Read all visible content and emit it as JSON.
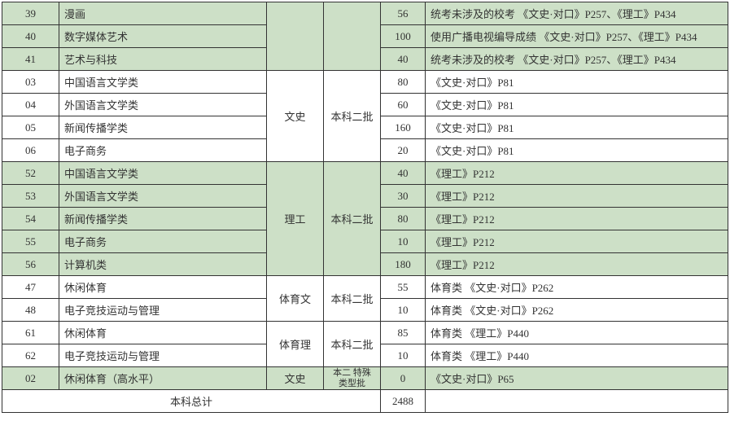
{
  "rows": [
    {
      "code": "39",
      "major": "漫画",
      "cat": "",
      "batch": "",
      "num": "56",
      "note": "统考未涉及的校考 《文史·对口》P257、《理工》P434",
      "green": true,
      "catRowspan": 3,
      "batchRowspan": 3
    },
    {
      "code": "40",
      "major": "数字媒体艺术",
      "num": "100",
      "note": "使用广播电视编导成绩 《文史·对口》P257、《理工》P434",
      "green": true
    },
    {
      "code": "41",
      "major": "艺术与科技",
      "num": "40",
      "note": "统考未涉及的校考 《文史·对口》P257、《理工》P434",
      "green": true
    },
    {
      "code": "03",
      "major": "中国语言文学类",
      "cat": "文史",
      "batch": "本科二批",
      "num": "80",
      "note": "《文史·对口》P81",
      "green": false,
      "catRowspan": 4,
      "batchRowspan": 4
    },
    {
      "code": "04",
      "major": "外国语言文学类",
      "num": "60",
      "note": "《文史·对口》P81",
      "green": false
    },
    {
      "code": "05",
      "major": "新闻传播学类",
      "num": "160",
      "note": "《文史·对口》P81",
      "green": false
    },
    {
      "code": "06",
      "major": "电子商务",
      "num": "20",
      "note": "《文史·对口》P81",
      "green": false
    },
    {
      "code": "52",
      "major": "中国语言文学类",
      "cat": "理工",
      "batch": "本科二批",
      "num": "40",
      "note": "《理工》P212",
      "green": true,
      "catRowspan": 5,
      "batchRowspan": 5
    },
    {
      "code": "53",
      "major": "外国语言文学类",
      "num": "30",
      "note": "《理工》P212",
      "green": true
    },
    {
      "code": "54",
      "major": "新闻传播学类",
      "num": "80",
      "note": "《理工》P212",
      "green": true
    },
    {
      "code": "55",
      "major": "电子商务",
      "num": "10",
      "note": "《理工》P212",
      "green": true
    },
    {
      "code": "56",
      "major": "计算机类",
      "num": "180",
      "note": "《理工》P212",
      "green": true
    },
    {
      "code": "47",
      "major": "休闲体育",
      "cat": "体育文",
      "batch": "本科二批",
      "num": "55",
      "note": "体育类 《文史·对口》P262",
      "green": false,
      "catRowspan": 2,
      "batchRowspan": 2
    },
    {
      "code": "48",
      "major": "电子竞技运动与管理",
      "num": "10",
      "note": "体育类 《文史·对口》P262",
      "green": false
    },
    {
      "code": "61",
      "major": "休闲体育",
      "cat": "体育理",
      "batch": "本科二批",
      "num": "85",
      "note": "体育类 《理工》P440",
      "green": false,
      "catRowspan": 2,
      "batchRowspan": 2
    },
    {
      "code": "62",
      "major": "电子竞技运动与管理",
      "num": "10",
      "note": "体育类 《理工》P440",
      "green": false
    },
    {
      "code": "02",
      "major": "休闲体育（高水平）",
      "cat": "文史",
      "batch": "本二\n特殊类型批",
      "num": "0",
      "note": "《文史·对口》P65",
      "green": true,
      "catRowspan": 1,
      "batchRowspan": 1,
      "smallBatch": true
    }
  ],
  "totalLabel": "本科总计",
  "totalNum": "2488",
  "colors": {
    "greenBg": "#cde0c7",
    "whiteBg": "#ffffff",
    "border": "#333333"
  }
}
